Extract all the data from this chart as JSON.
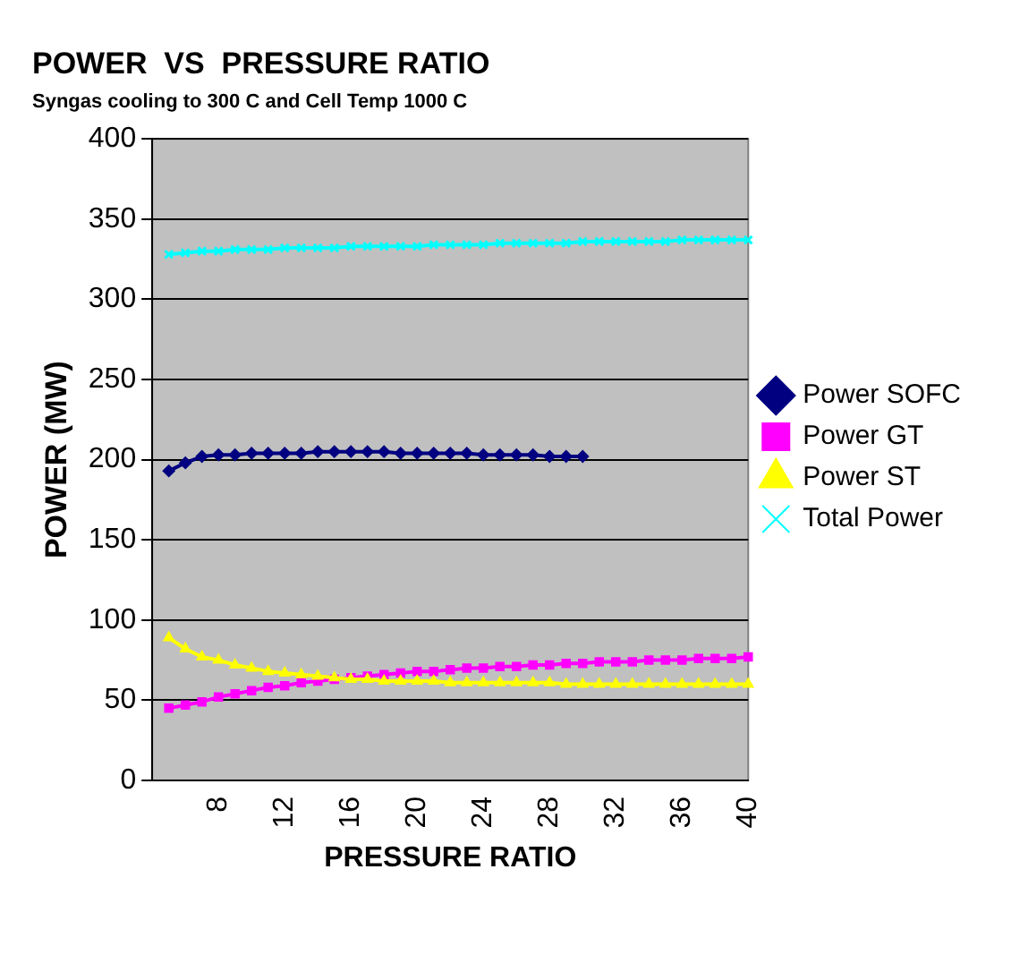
{
  "chart_data": {
    "type": "line",
    "title": "POWER  VS  PRESSURE RATIO",
    "subtitle": "Syngas cooling to 300 C and Cell Temp 1000 C",
    "xlabel": "PRESSURE RATIO",
    "ylabel": "POWER (MW)",
    "categories": [
      null,
      null,
      null,
      null,
      "8",
      null,
      null,
      null,
      "12",
      null,
      null,
      null,
      "16",
      null,
      null,
      null,
      "20",
      null,
      null,
      null,
      "24",
      null,
      null,
      null,
      "28",
      null,
      null,
      null,
      "32",
      null,
      null,
      null,
      "36",
      null,
      null,
      null,
      "40"
    ],
    "series": [
      {
        "name": "Power SOFC",
        "color": "#000080",
        "marker": "diamond",
        "values": [
          null,
          193,
          198,
          202,
          203,
          203,
          204,
          204,
          204,
          204,
          205,
          205,
          205,
          205,
          205,
          204,
          204,
          204,
          204,
          204,
          203,
          203,
          203,
          203,
          202,
          202,
          202,
          null,
          null,
          null,
          null,
          null,
          null,
          null,
          null,
          null,
          null
        ]
      },
      {
        "name": "Power GT",
        "color": "#ff00ff",
        "marker": "square",
        "values": [
          null,
          45,
          47,
          49,
          52,
          54,
          56,
          58,
          59,
          61,
          62,
          63,
          64,
          65,
          66,
          67,
          68,
          68,
          69,
          70,
          70,
          71,
          71,
          72,
          72,
          73,
          73,
          74,
          74,
          74,
          75,
          75,
          75,
          76,
          76,
          76,
          77
        ]
      },
      {
        "name": "Power ST",
        "color": "#ffff00",
        "marker": "triangle",
        "values": [
          null,
          89,
          82,
          77,
          75,
          72,
          70,
          68,
          67,
          66,
          65,
          64,
          63,
          63,
          62,
          62,
          62,
          62,
          61,
          61,
          61,
          61,
          61,
          61,
          61,
          60,
          60,
          60,
          60,
          60,
          60,
          60,
          60,
          60,
          60,
          60,
          60
        ]
      },
      {
        "name": "Total Power",
        "color": "#00ffff",
        "marker": "cross",
        "values": [
          null,
          328,
          329,
          330,
          330,
          331,
          331,
          331,
          332,
          332,
          332,
          332,
          333,
          333,
          333,
          333,
          333,
          334,
          334,
          334,
          334,
          335,
          335,
          335,
          335,
          335,
          336,
          336,
          336,
          336,
          336,
          336,
          337,
          337,
          337,
          337,
          337
        ]
      }
    ],
    "ylim": [
      0,
      400
    ],
    "yticks": [
      0,
      50,
      100,
      150,
      200,
      250,
      300,
      350,
      400
    ],
    "grid": "y",
    "legend": "right"
  }
}
